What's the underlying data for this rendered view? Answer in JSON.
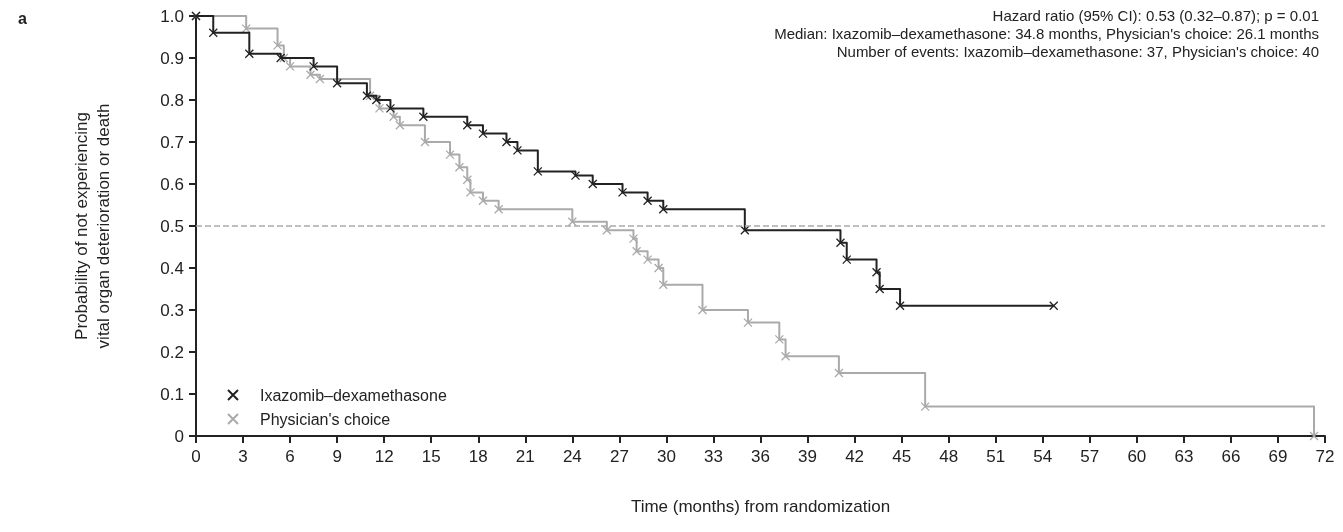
{
  "chart_data": {
    "type": "step",
    "title": "a",
    "xlabel": "Time (months) from randomization",
    "ylabel": "Probability of not experiencing\nvital organ deterioration or death",
    "annotations": [
      "Hazard ratio (95% CI): 0.53 (0.32–0.87); p = 0.01",
      "Median: Ixazomib–dexamethasone: 34.8 months, Physician's choice: 26.1 months",
      "Number of events: Ixazomib–dexamethasone: 37, Physician's choice: 40"
    ],
    "series": [
      {
        "name": "Ixazomib–dexamethasone",
        "color": "#222222",
        "x": [
          0,
          1.1,
          3.4,
          5.4,
          7.5,
          9,
          10.9,
          11.5,
          12.4,
          14.5,
          17.3,
          18.3,
          19.8,
          20.5,
          21.8,
          24.2,
          25.3,
          27.2,
          28.8,
          29.8,
          35,
          41.1,
          41.5,
          43.4,
          43.6,
          44.9,
          54.7
        ],
        "values": [
          1,
          0.96,
          0.91,
          0.9,
          0.88,
          0.84,
          0.81,
          0.8,
          0.78,
          0.76,
          0.74,
          0.72,
          0.7,
          0.68,
          0.63,
          0.62,
          0.6,
          0.58,
          0.56,
          0.54,
          0.49,
          0.46,
          0.42,
          0.39,
          0.35,
          0.31,
          0.31
        ]
      },
      {
        "name": "Physician's choice",
        "color": "#aaaaaa",
        "x": [
          0,
          3.2,
          5.2,
          5.6,
          6,
          7.3,
          7.9,
          11.1,
          11.7,
          12.6,
          13,
          14.6,
          16.2,
          16.8,
          17.3,
          17.5,
          18.3,
          19.3,
          24,
          26.2,
          27.9,
          28.1,
          28.8,
          29.5,
          29.8,
          32.3,
          35.2,
          37.2,
          37.6,
          41,
          46.5,
          71.3
        ],
        "values": [
          1,
          0.97,
          0.93,
          0.9,
          0.88,
          0.86,
          0.85,
          0.81,
          0.78,
          0.76,
          0.74,
          0.7,
          0.67,
          0.64,
          0.61,
          0.58,
          0.56,
          0.54,
          0.51,
          0.49,
          0.47,
          0.44,
          0.42,
          0.4,
          0.36,
          0.3,
          0.27,
          0.23,
          0.19,
          0.15,
          0.07,
          0
        ]
      }
    ],
    "xlim": [
      0,
      72
    ],
    "xticks": [
      0,
      3,
      6,
      9,
      12,
      15,
      18,
      21,
      24,
      27,
      30,
      33,
      36,
      39,
      42,
      45,
      48,
      51,
      54,
      57,
      60,
      63,
      66,
      69,
      72
    ],
    "ylim": [
      0,
      1
    ],
    "yticks": [
      0,
      0.1,
      0.2,
      0.3,
      0.4,
      0.5,
      0.6,
      0.7,
      0.8,
      0.9,
      {
        "value": 1,
        "label": "1.0"
      }
    ],
    "ref_lines": [
      {
        "axis": "y",
        "value": 0.5,
        "color": "#aaaaaa",
        "line_style": "dashed"
      }
    ],
    "grid": false,
    "legend": "bottom left",
    "marker": "cross",
    "line_style": "solid"
  }
}
